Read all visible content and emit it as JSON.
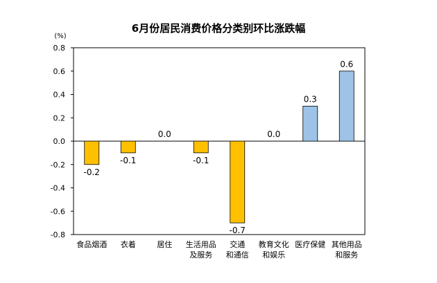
{
  "chart_data": {
    "type": "bar",
    "title": "6月份居民消费价格分类别环比涨跌幅",
    "unit": "(%)",
    "categories": [
      [
        "食品烟酒"
      ],
      [
        "衣着"
      ],
      [
        "居住"
      ],
      [
        "生活用品",
        "及服务"
      ],
      [
        "交通",
        "和通信"
      ],
      [
        "教育文化",
        "和娱乐"
      ],
      [
        "医疗保健"
      ],
      [
        "其他用品",
        "和服务"
      ]
    ],
    "values": [
      -0.2,
      -0.1,
      0.0,
      -0.1,
      -0.7,
      0.0,
      0.3,
      0.6
    ],
    "data_labels": [
      "-0.2",
      "-0.1",
      "0.0",
      "-0.1",
      "-0.7",
      "0.0",
      "0.3",
      "0.6"
    ],
    "ylim": [
      -0.8,
      0.8
    ],
    "yticks": [
      0.8,
      0.6,
      0.4,
      0.2,
      0.0,
      -0.2,
      -0.4,
      -0.6,
      -0.8
    ],
    "ytick_labels": [
      "0.8",
      "0.6",
      "0.4",
      "0.2",
      "0.0",
      "-0.2",
      "-0.4",
      "-0.6",
      "-0.8"
    ],
    "colors": {
      "negative_fill": "#FFC000",
      "positive_fill": "#9DC3E6",
      "bar_stroke": "#000000",
      "axis": "#000000"
    },
    "grid": false
  }
}
